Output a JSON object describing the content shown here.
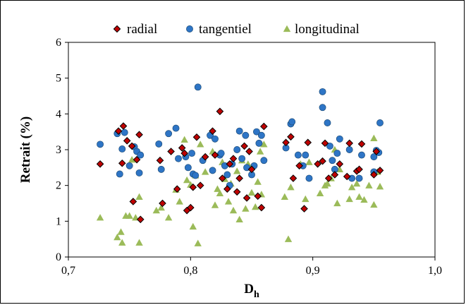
{
  "chart_data": {
    "type": "scatter",
    "title": "",
    "xlabel": "D",
    "xlabel_sub": "h",
    "ylabel": "Retrait (%)",
    "xlim": [
      0.7,
      1.0
    ],
    "ylim": [
      0,
      6
    ],
    "xticks": [
      "0,7",
      "0,8",
      "0,9",
      "1,0"
    ],
    "yticks": [
      "0",
      "1",
      "2",
      "3",
      "4",
      "5",
      "6"
    ],
    "grid": false,
    "legend_position": "top",
    "series": [
      {
        "name": "radial",
        "marker": "diamond",
        "color": "#c00000",
        "points": [
          [
            0.726,
            2.6
          ],
          [
            0.741,
            3.52
          ],
          [
            0.744,
            2.62
          ],
          [
            0.745,
            3.66
          ],
          [
            0.748,
            3.25
          ],
          [
            0.752,
            3.1
          ],
          [
            0.753,
            1.55
          ],
          [
            0.756,
            2.72
          ],
          [
            0.758,
            3.42
          ],
          [
            0.759,
            1.05
          ],
          [
            0.775,
            2.7
          ],
          [
            0.777,
            1.5
          ],
          [
            0.784,
            2.95
          ],
          [
            0.789,
            1.9
          ],
          [
            0.793,
            3.05
          ],
          [
            0.795,
            2.9
          ],
          [
            0.797,
            1.3
          ],
          [
            0.8,
            1.38
          ],
          [
            0.802,
            1.95
          ],
          [
            0.805,
            3.35
          ],
          [
            0.808,
            2.0
          ],
          [
            0.812,
            2.8
          ],
          [
            0.818,
            3.52
          ],
          [
            0.82,
            2.85
          ],
          [
            0.824,
            4.07
          ],
          [
            0.826,
            2.2
          ],
          [
            0.83,
            1.9
          ],
          [
            0.832,
            2.6
          ],
          [
            0.835,
            2.75
          ],
          [
            0.838,
            1.82
          ],
          [
            0.84,
            2.2
          ],
          [
            0.844,
            3.1
          ],
          [
            0.846,
            1.65
          ],
          [
            0.848,
            2.95
          ],
          [
            0.85,
            2.45
          ],
          [
            0.855,
            1.7
          ],
          [
            0.858,
            1.38
          ],
          [
            0.86,
            3.65
          ],
          [
            0.878,
            3.2
          ],
          [
            0.882,
            3.36
          ],
          [
            0.884,
            2.2
          ],
          [
            0.889,
            2.55
          ],
          [
            0.893,
            1.35
          ],
          [
            0.896,
            3.2
          ],
          [
            0.904,
            2.6
          ],
          [
            0.908,
            2.68
          ],
          [
            0.91,
            3.18
          ],
          [
            0.913,
            2.2
          ],
          [
            0.918,
            2.3
          ],
          [
            0.922,
            2.6
          ],
          [
            0.928,
            2.25
          ],
          [
            0.93,
            3.18
          ],
          [
            0.936,
            2.4
          ],
          [
            0.938,
            2.45
          ],
          [
            0.94,
            3.16
          ],
          [
            0.95,
            2.3
          ],
          [
            0.952,
            2.95
          ],
          [
            0.955,
            2.42
          ]
        ]
      },
      {
        "name": "tangentiel",
        "marker": "circle",
        "color": "#2e75c6",
        "points": [
          [
            0.726,
            3.15
          ],
          [
            0.74,
            3.45
          ],
          [
            0.742,
            2.32
          ],
          [
            0.744,
            3.02
          ],
          [
            0.746,
            3.48
          ],
          [
            0.75,
            2.55
          ],
          [
            0.754,
            3.08
          ],
          [
            0.756,
            2.95
          ],
          [
            0.758,
            2.35
          ],
          [
            0.759,
            2.85
          ],
          [
            0.774,
            3.16
          ],
          [
            0.776,
            2.45
          ],
          [
            0.782,
            3.45
          ],
          [
            0.788,
            3.6
          ],
          [
            0.79,
            2.75
          ],
          [
            0.796,
            2.8
          ],
          [
            0.798,
            2.5
          ],
          [
            0.801,
            2.9
          ],
          [
            0.802,
            2.32
          ],
          [
            0.804,
            2.28
          ],
          [
            0.806,
            4.75
          ],
          [
            0.81,
            2.7
          ],
          [
            0.816,
            3.4
          ],
          [
            0.818,
            2.42
          ],
          [
            0.82,
            3.3
          ],
          [
            0.824,
            2.85
          ],
          [
            0.825,
            2.9
          ],
          [
            0.828,
            2.55
          ],
          [
            0.83,
            2.3
          ],
          [
            0.832,
            2.0
          ],
          [
            0.834,
            2.6
          ],
          [
            0.838,
            3.0
          ],
          [
            0.84,
            3.52
          ],
          [
            0.842,
            2.75
          ],
          [
            0.845,
            3.4
          ],
          [
            0.846,
            2.5
          ],
          [
            0.85,
            2.3
          ],
          [
            0.852,
            2.55
          ],
          [
            0.854,
            3.5
          ],
          [
            0.856,
            3.18
          ],
          [
            0.858,
            3.4
          ],
          [
            0.86,
            2.7
          ],
          [
            0.878,
            3.05
          ],
          [
            0.882,
            3.72
          ],
          [
            0.883,
            3.78
          ],
          [
            0.888,
            2.85
          ],
          [
            0.892,
            2.55
          ],
          [
            0.894,
            2.85
          ],
          [
            0.897,
            2.2
          ],
          [
            0.908,
            4.62
          ],
          [
            0.908,
            4.18
          ],
          [
            0.912,
            3.75
          ],
          [
            0.914,
            3.1
          ],
          [
            0.916,
            2.7
          ],
          [
            0.918,
            2.45
          ],
          [
            0.92,
            2.9
          ],
          [
            0.922,
            3.3
          ],
          [
            0.93,
            3.0
          ],
          [
            0.932,
            2.2
          ],
          [
            0.938,
            2.2
          ],
          [
            0.94,
            2.85
          ],
          [
            0.95,
            2.8
          ],
          [
            0.95,
            2.38
          ],
          [
            0.952,
            2.98
          ],
          [
            0.954,
            2.92
          ],
          [
            0.955,
            3.75
          ]
        ]
      },
      {
        "name": "longitudinal",
        "marker": "triangle",
        "color": "#9bbb59",
        "points": [
          [
            0.726,
            1.1
          ],
          [
            0.74,
            0.55
          ],
          [
            0.743,
            0.7
          ],
          [
            0.744,
            0.4
          ],
          [
            0.747,
            1.15
          ],
          [
            0.75,
            1.15
          ],
          [
            0.752,
            2.72
          ],
          [
            0.755,
            1.1
          ],
          [
            0.758,
            0.4
          ],
          [
            0.758,
            1.68
          ],
          [
            0.772,
            1.3
          ],
          [
            0.776,
            1.38
          ],
          [
            0.782,
            1.1
          ],
          [
            0.788,
            1.88
          ],
          [
            0.791,
            1.55
          ],
          [
            0.795,
            3.28
          ],
          [
            0.797,
            2.15
          ],
          [
            0.8,
            2.02
          ],
          [
            0.802,
            0.85
          ],
          [
            0.804,
            2.28
          ],
          [
            0.806,
            0.38
          ],
          [
            0.808,
            3.15
          ],
          [
            0.812,
            2.38
          ],
          [
            0.818,
            2.95
          ],
          [
            0.82,
            1.45
          ],
          [
            0.822,
            1.9
          ],
          [
            0.824,
            1.78
          ],
          [
            0.826,
            2.65
          ],
          [
            0.828,
            2.18
          ],
          [
            0.831,
            1.55
          ],
          [
            0.833,
            2.05
          ],
          [
            0.835,
            1.3
          ],
          [
            0.838,
            2.4
          ],
          [
            0.84,
            1.05
          ],
          [
            0.842,
            2.7
          ],
          [
            0.845,
            1.35
          ],
          [
            0.847,
            2.6
          ],
          [
            0.85,
            1.8
          ],
          [
            0.853,
            1.4
          ],
          [
            0.855,
            2.1
          ],
          [
            0.857,
            2.95
          ],
          [
            0.858,
            1.75
          ],
          [
            0.86,
            3.15
          ],
          [
            0.877,
            1.68
          ],
          [
            0.88,
            0.5
          ],
          [
            0.882,
            1.95
          ],
          [
            0.89,
            2.6
          ],
          [
            0.894,
            1.62
          ],
          [
            0.897,
            2.65
          ],
          [
            0.906,
            1.78
          ],
          [
            0.91,
            2.0
          ],
          [
            0.912,
            2.05
          ],
          [
            0.915,
            2.2
          ],
          [
            0.918,
            3.0
          ],
          [
            0.92,
            1.5
          ],
          [
            0.922,
            2.45
          ],
          [
            0.93,
            1.62
          ],
          [
            0.932,
            1.95
          ],
          [
            0.936,
            2.05
          ],
          [
            0.938,
            1.68
          ],
          [
            0.942,
            1.6
          ],
          [
            0.946,
            2.0
          ],
          [
            0.95,
            1.46
          ],
          [
            0.95,
            3.32
          ],
          [
            0.953,
            2.38
          ],
          [
            0.955,
            1.97
          ]
        ]
      }
    ]
  }
}
